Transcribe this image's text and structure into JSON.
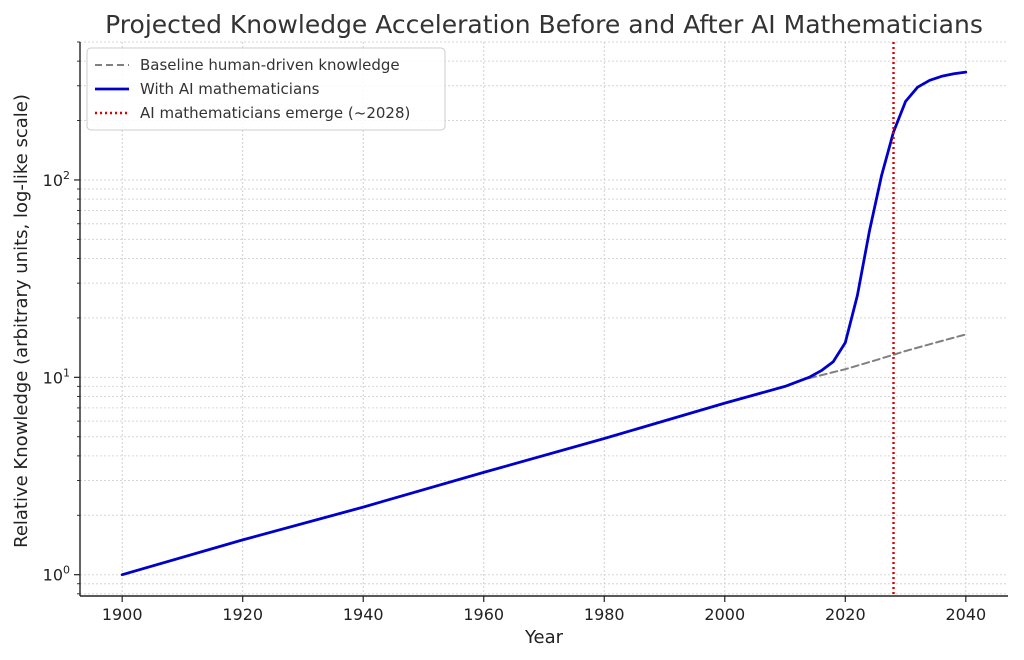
{
  "chart_data": {
    "type": "line",
    "title": "Projected Knowledge Acceleration Before and After AI Mathematicians",
    "xlabel": "Year",
    "ylabel": "Relative Knowledge (arbitrary units, log-like scale)",
    "xlim": [
      1893,
      2047
    ],
    "ylim": [
      0.78,
      500
    ],
    "yscale": "log",
    "xticks": [
      1900,
      1920,
      1940,
      1960,
      1980,
      2000,
      2020,
      2040
    ],
    "yticks": [
      {
        "value": 1,
        "base": "10",
        "exp": "0"
      },
      {
        "value": 10,
        "base": "10",
        "exp": "1"
      },
      {
        "value": 100,
        "base": "10",
        "exp": "2"
      }
    ],
    "grid": true,
    "legend_position": "top-left",
    "series": [
      {
        "name": "Baseline human-driven knowledge",
        "style": "dashed",
        "color": "#808080",
        "x": [
          2014,
          2020,
          2025,
          2030,
          2035,
          2040
        ],
        "y": [
          9.9,
          11.0,
          12.2,
          13.6,
          15.0,
          16.5
        ]
      },
      {
        "name": "With AI mathematicians",
        "style": "solid",
        "color": "#0000cc",
        "x": [
          1900,
          1920,
          1940,
          1960,
          1980,
          2000,
          2010,
          2014,
          2016,
          2018,
          2020,
          2022,
          2024,
          2026,
          2028,
          2030,
          2032,
          2034,
          2036,
          2038,
          2040
        ],
        "y": [
          1.0,
          1.5,
          2.2,
          3.3,
          4.9,
          7.4,
          9.0,
          10.0,
          10.8,
          12.0,
          15.0,
          26.0,
          55.0,
          105.0,
          175.0,
          250.0,
          295.0,
          320.0,
          335.0,
          345.0,
          352.0
        ]
      },
      {
        "name": "AI mathematicians emerge (~2028)",
        "style": "dotted",
        "color": "#dd0000",
        "vline_x": 2028
      }
    ]
  }
}
